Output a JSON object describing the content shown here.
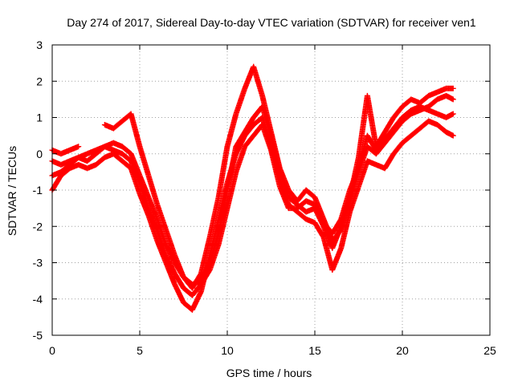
{
  "chart_data": {
    "type": "scatter",
    "title": "Day 274 of 2017, Sidereal Day-to-day VTEC variation (SDTVAR) for receiver ven1",
    "xlabel": "GPS time / hours",
    "ylabel": "SDTVAR / TECUs",
    "xlim": [
      0,
      25
    ],
    "ylim": [
      -5,
      3
    ],
    "xticks": [
      0,
      5,
      10,
      15,
      20,
      25
    ],
    "yticks": [
      -5,
      -4,
      -3,
      -2,
      -1,
      0,
      1,
      2,
      3
    ],
    "grid": true,
    "legend": "none",
    "marker": "plus",
    "color": "#ff0000",
    "series": [
      {
        "x": [
          0.0,
          0.5,
          1.0,
          1.5,
          2.0,
          2.5,
          3.0,
          3.5,
          4.0,
          4.5,
          5.0,
          5.5,
          6.0,
          6.5,
          7.0,
          7.5,
          8.0,
          8.5,
          9.0,
          9.5,
          10.0,
          10.5,
          11.0,
          11.5,
          12.0,
          12.5,
          13.0,
          13.5,
          14.0,
          14.5,
          15.0,
          15.5,
          16.0,
          16.5,
          17.0,
          17.5,
          18.0,
          18.5,
          19.0,
          19.5,
          20.0,
          20.5,
          21.0,
          21.5,
          22.0,
          22.5,
          22.9
        ],
        "y": [
          0.1,
          0.0,
          0.1,
          0.2,
          null,
          null,
          0.8,
          0.7,
          0.9,
          1.1,
          0.2,
          -0.6,
          -1.4,
          -2.1,
          -2.8,
          -3.4,
          -3.7,
          -3.3,
          -2.3,
          -1.2,
          0.2,
          1.1,
          1.8,
          2.4,
          1.6,
          0.6,
          -0.4,
          -1.0,
          -1.3,
          -1.0,
          -1.2,
          -1.8,
          -2.4,
          -2.1,
          -1.2,
          -0.1,
          1.6,
          0.2,
          0.6,
          1.0,
          1.3,
          1.5,
          1.4,
          1.6,
          1.7,
          1.8,
          1.8
        ]
      },
      {
        "x": [
          0.0,
          0.5,
          1.0,
          1.5,
          2.0,
          2.5,
          3.0,
          3.5,
          4.0,
          4.5,
          5.0,
          5.5,
          6.0,
          6.5,
          7.0,
          7.5,
          8.0,
          8.5,
          9.0,
          9.5,
          10.0,
          10.5,
          11.0,
          11.5,
          12.0,
          12.5,
          13.0,
          13.5,
          14.0,
          14.5,
          15.0,
          15.5,
          16.0,
          16.5,
          17.0,
          17.5,
          18.0,
          18.5,
          19.0,
          19.5,
          20.0,
          20.5,
          21.0,
          21.5,
          22.0,
          22.5,
          22.9
        ],
        "y": [
          -0.6,
          -0.5,
          -0.3,
          -0.1,
          0.0,
          0.1,
          0.2,
          0.3,
          0.2,
          0.0,
          -0.6,
          -1.2,
          -1.8,
          -2.5,
          -3.0,
          -3.4,
          -3.6,
          -3.5,
          -3.0,
          -2.2,
          -1.0,
          0.2,
          0.6,
          1.0,
          1.3,
          0.5,
          -0.5,
          -1.2,
          -1.4,
          -1.6,
          -1.5,
          -2.0,
          -2.6,
          -2.0,
          -1.3,
          -0.5,
          0.2,
          0.0,
          0.3,
          0.6,
          0.9,
          1.1,
          1.2,
          1.3,
          1.5,
          1.6,
          1.5
        ]
      },
      {
        "x": [
          0.0,
          0.5,
          1.0,
          1.5,
          2.0,
          2.5,
          3.0,
          3.5,
          4.0,
          4.5,
          5.0,
          5.5,
          6.0,
          6.5,
          7.0,
          7.5,
          8.0,
          8.5,
          9.0,
          9.5,
          10.0,
          10.5,
          11.0,
          11.5,
          12.0,
          12.5,
          13.0,
          13.5,
          14.0,
          14.5,
          15.0,
          15.5,
          16.0,
          16.5,
          17.0,
          17.5,
          18.0,
          18.5,
          19.0,
          19.5,
          20.0,
          20.5,
          21.0,
          21.5,
          22.0,
          22.5,
          22.9
        ],
        "y": [
          -1.0,
          -0.6,
          -0.4,
          -0.3,
          -0.4,
          -0.3,
          -0.1,
          0.0,
          -0.2,
          -0.4,
          -1.1,
          -1.7,
          -2.4,
          -3.0,
          -3.6,
          -4.1,
          -4.3,
          -3.8,
          -2.8,
          -1.8,
          -0.8,
          0.0,
          0.5,
          0.8,
          1.0,
          0.2,
          -0.7,
          -1.4,
          -1.6,
          -1.8,
          -1.9,
          -2.3,
          -3.2,
          -2.6,
          -1.6,
          -0.9,
          -0.2,
          -0.3,
          -0.4,
          0.0,
          0.3,
          0.5,
          0.7,
          0.9,
          0.8,
          0.6,
          0.5
        ]
      },
      {
        "x": [
          0.0,
          0.5,
          1.0,
          1.5,
          2.0,
          2.5,
          3.0,
          3.5,
          4.0,
          4.5,
          5.0,
          5.5,
          6.0,
          6.5,
          7.0,
          7.5,
          8.0,
          8.5,
          9.0,
          9.5,
          10.0,
          10.5,
          11.0,
          11.5,
          12.0,
          12.5,
          13.0,
          13.5,
          14.0,
          14.5,
          15.0,
          15.5,
          16.0,
          16.5,
          17.0,
          17.5,
          18.0,
          18.5,
          19.0,
          19.5,
          20.0,
          20.5,
          21.0,
          21.5,
          22.0,
          22.5,
          22.9
        ],
        "y": [
          -0.2,
          -0.3,
          -0.2,
          -0.1,
          -0.2,
          0.0,
          0.2,
          0.1,
          0.0,
          -0.2,
          -0.8,
          -1.5,
          -2.1,
          -2.8,
          -3.3,
          -3.7,
          -3.9,
          -3.6,
          -3.2,
          -2.5,
          -1.5,
          -0.5,
          0.2,
          0.5,
          0.8,
          0.1,
          -0.9,
          -1.5,
          -1.5,
          -1.3,
          -1.4,
          -1.9,
          -2.2,
          -1.8,
          -1.0,
          -0.4,
          0.5,
          0.1,
          0.4,
          0.7,
          1.0,
          1.2,
          1.3,
          1.2,
          1.1,
          1.0,
          1.1
        ]
      }
    ]
  }
}
